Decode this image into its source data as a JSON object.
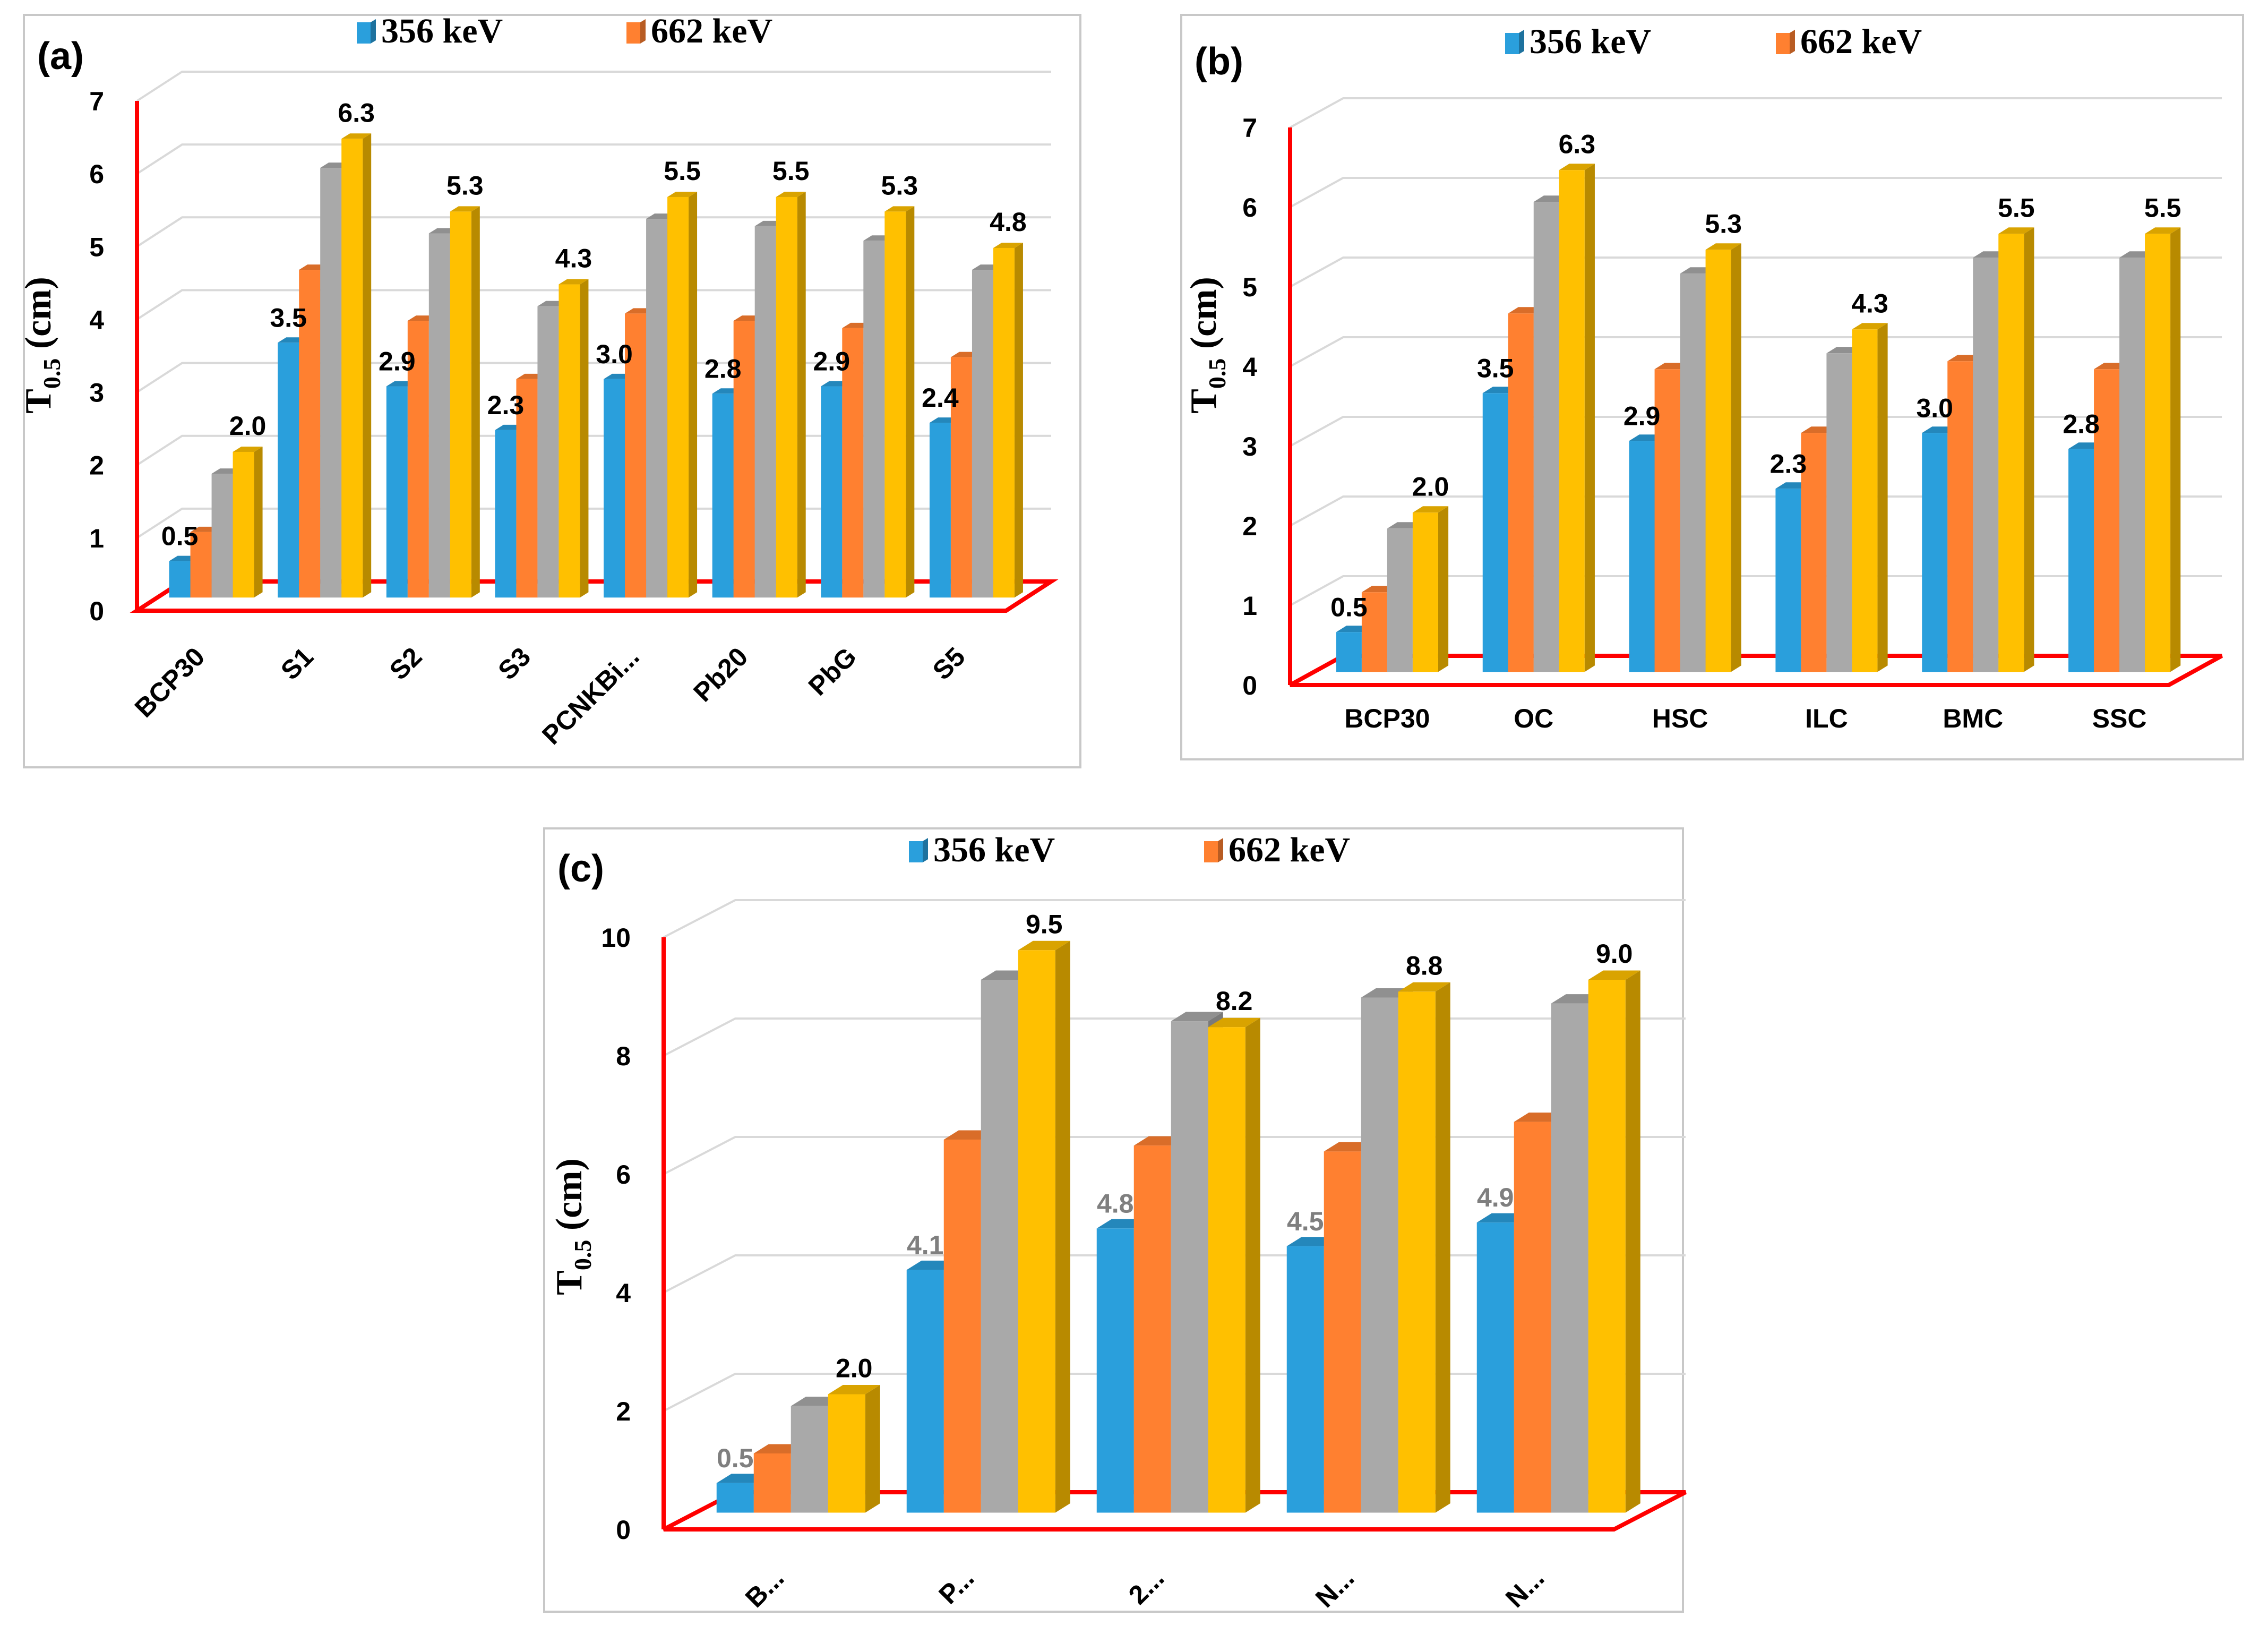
{
  "chart_data": [
    {
      "panel": "(a)",
      "type": "bar",
      "ylabel": "T",
      "ylabel_sub": "0.5",
      "ylabel_unit": "(cm)",
      "ylim": [
        0,
        7
      ],
      "yticks": [
        "0",
        "1",
        "2",
        "3",
        "4",
        "5",
        "6",
        "7"
      ],
      "categories": [
        "BCP30",
        "S1",
        "S2",
        "S3",
        "PCNKBi...",
        "Pb20",
        "PbG",
        "S5"
      ],
      "category_rotation": "diagonal",
      "legend": [
        "356 keV",
        "662 keV"
      ],
      "series": [
        {
          "name": "356 keV",
          "color": "#2a9fdc",
          "values": [
            0.5,
            3.5,
            2.9,
            2.3,
            3.0,
            2.8,
            2.9,
            2.4
          ]
        },
        {
          "name": "662 keV",
          "color": "#ff8030",
          "values": [
            0.9,
            4.5,
            3.8,
            3.0,
            3.9,
            3.8,
            3.7,
            3.3
          ]
        },
        {
          "name": "",
          "color": "#a9a9a9",
          "values": [
            1.7,
            5.9,
            5.0,
            4.0,
            5.2,
            5.1,
            4.9,
            4.5
          ]
        },
        {
          "name": "",
          "color": "#ffc000",
          "values": [
            2.0,
            6.3,
            5.3,
            4.3,
            5.5,
            5.5,
            5.3,
            4.8
          ]
        }
      ],
      "labels_first": [
        "0.5",
        "3.5",
        "2.9",
        "2.3",
        "3.0",
        "2.8",
        "2.9",
        "2.4"
      ],
      "labels_last": [
        "2.0",
        "6.3",
        "5.3",
        "4.3",
        "5.5",
        "5.5",
        "5.3",
        "4.8"
      ]
    },
    {
      "panel": "(b)",
      "type": "bar",
      "ylabel": "T",
      "ylabel_sub": "0.5",
      "ylabel_unit": "(cm)",
      "ylim": [
        0,
        7
      ],
      "yticks": [
        "0",
        "1",
        "2",
        "3",
        "4",
        "5",
        "6",
        "7"
      ],
      "categories": [
        "BCP30",
        "OC",
        "HSC",
        "ILC",
        "BMC",
        "SSC"
      ],
      "category_rotation": "horizontal",
      "legend": [
        "356 keV",
        "662 keV"
      ],
      "series": [
        {
          "name": "356 keV",
          "color": "#2a9fdc",
          "values": [
            0.5,
            3.5,
            2.9,
            2.3,
            3.0,
            2.8
          ]
        },
        {
          "name": "662 keV",
          "color": "#ff8030",
          "values": [
            1.0,
            4.5,
            3.8,
            3.0,
            3.9,
            3.8
          ]
        },
        {
          "name": "",
          "color": "#a9a9a9",
          "values": [
            1.8,
            5.9,
            5.0,
            4.0,
            5.2,
            5.2
          ]
        },
        {
          "name": "",
          "color": "#ffc000",
          "values": [
            2.0,
            6.3,
            5.3,
            4.3,
            5.5,
            5.5
          ]
        }
      ],
      "labels_first": [
        "0.5",
        "3.5",
        "2.9",
        "2.3",
        "3.0",
        "2.8"
      ],
      "labels_last": [
        "2.0",
        "6.3",
        "5.3",
        "4.3",
        "5.5",
        "5.5"
      ]
    },
    {
      "panel": "(c)",
      "type": "bar",
      "ylabel": "T",
      "ylabel_sub": "0.5",
      "ylabel_unit": "(cm)",
      "ylim": [
        0,
        10
      ],
      "yticks": [
        "0",
        "2",
        "4",
        "6",
        "8",
        "10"
      ],
      "categories": [
        "B...",
        "P...",
        "2...",
        "N...",
        "N..."
      ],
      "category_rotation": "diagonal",
      "legend": [
        "356 keV",
        "662 keV"
      ],
      "series": [
        {
          "name": "356 keV",
          "color": "#2a9fdc",
          "values": [
            0.5,
            4.1,
            4.8,
            4.5,
            4.9
          ]
        },
        {
          "name": "662 keV",
          "color": "#ff8030",
          "values": [
            1.0,
            6.3,
            6.2,
            6.1,
            6.6
          ]
        },
        {
          "name": "",
          "color": "#a9a9a9",
          "values": [
            1.8,
            9.0,
            8.3,
            8.7,
            8.6
          ]
        },
        {
          "name": "",
          "color": "#ffc000",
          "values": [
            2.0,
            9.5,
            8.2,
            8.8,
            9.0
          ]
        }
      ],
      "labels_first": [
        "0.5",
        "4.1",
        "4.8",
        "4.5",
        "4.9"
      ],
      "labels_last": [
        "2.0",
        "9.5",
        "8.2",
        "8.8",
        "9.0"
      ]
    }
  ]
}
